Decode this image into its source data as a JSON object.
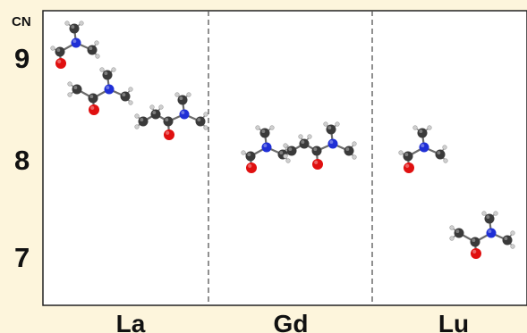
{
  "y_axis": {
    "title": "CN",
    "ticks": [
      {
        "label": "9",
        "value": 9
      },
      {
        "label": "8",
        "value": 8
      },
      {
        "label": "7",
        "value": 7
      }
    ]
  },
  "panels": [
    {
      "label": "La"
    },
    {
      "label": "Gd"
    },
    {
      "label": "Lu"
    }
  ],
  "colors": {
    "background": "#fdf5dc",
    "plot_area": "#ffffff",
    "frame": "#222222",
    "divider": "#555555",
    "carbon": "#3a3a3a",
    "nitrogen": "#1f2fd6",
    "oxygen": "#e01010",
    "hydrogen": "#cfcfcf",
    "bond": "#6b6b6b"
  },
  "molecules": [
    {
      "name": "DMF",
      "panel": "La",
      "cn": 9
    },
    {
      "name": "DMA",
      "panel": "La",
      "cn": 8.6
    },
    {
      "name": "DMPA",
      "panel": "La",
      "cn": 8.5
    },
    {
      "name": "DMF",
      "panel": "Gd",
      "cn": 8
    },
    {
      "name": "DMPA",
      "panel": "Gd",
      "cn": 8
    },
    {
      "name": "DMF",
      "panel": "Lu",
      "cn": 8
    },
    {
      "name": "DMA",
      "panel": "Lu",
      "cn": 7
    }
  ]
}
